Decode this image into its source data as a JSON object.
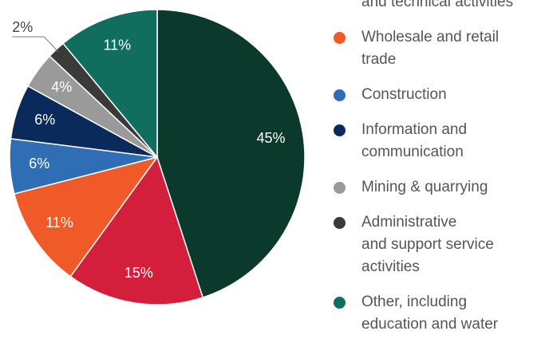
{
  "chart_data": {
    "type": "pie",
    "categories": [
      null,
      "and technical activities",
      "Wholesale and retail\ntrade",
      "Construction",
      "Information and\ncommunication",
      "Mining & quarrying",
      "Administrative\nand support service\nactivities",
      "Other, including\neducation and water"
    ],
    "values": [
      45,
      15,
      11,
      6,
      6,
      4,
      2,
      11
    ],
    "value_labels": [
      "45%",
      "15%",
      "11%",
      "6%",
      "6%",
      "4%",
      "2%",
      "11%"
    ],
    "colors": [
      "#0b3a2c",
      "#d41f3c",
      "#f05a28",
      "#2f6db5",
      "#0a2a5c",
      "#9a9a9a",
      "#3a3a3a",
      "#0f6e5e"
    ],
    "start_angle": 0,
    "direction": "clockwise"
  }
}
